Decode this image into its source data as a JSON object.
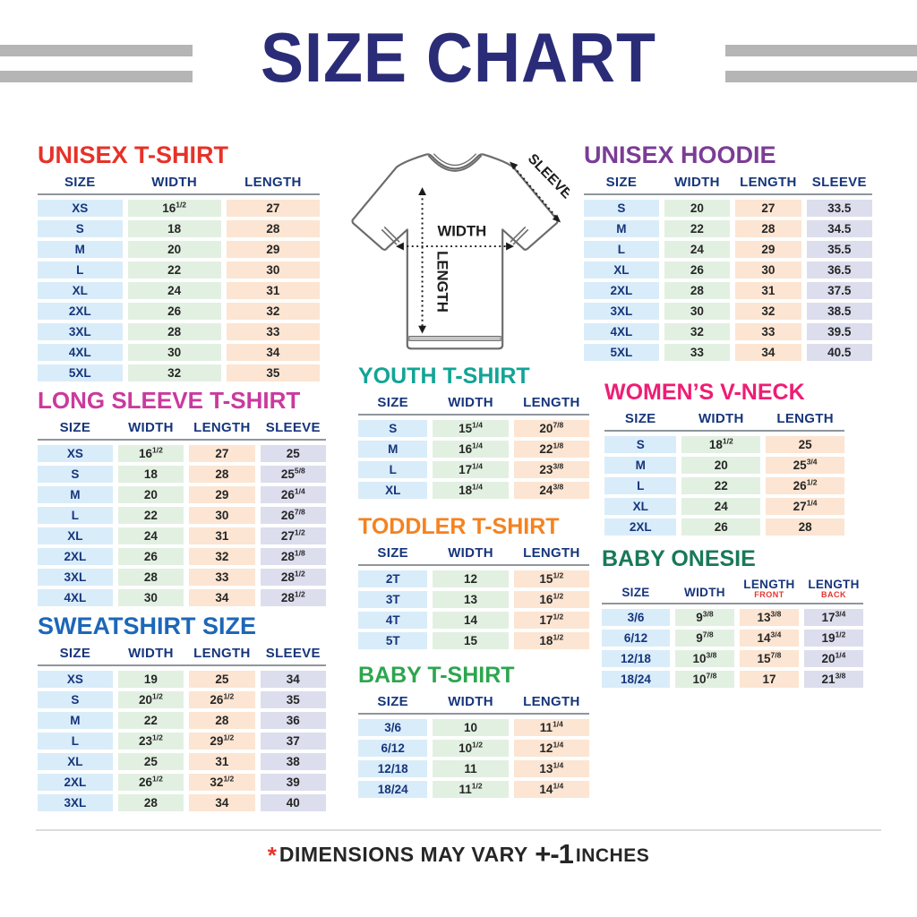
{
  "page": {
    "title": "SIZE CHART",
    "footer": {
      "asterisk": "*",
      "text": "DIMENSIONS MAY VARY",
      "tolerance": "+-1",
      "units": "INCHES"
    }
  },
  "colors": {
    "title_navy": "#2b2c77",
    "header_navy": "#16357c",
    "gray_bar": "#b5b5b5",
    "col_fills": [
      "#d9ecf9",
      "#e2f0e2",
      "#fce5d2",
      "#dcdded"
    ],
    "header_sub_red": "#e6342e"
  },
  "diagram": {
    "width_label": "WIDTH",
    "length_label": "LENGTH",
    "sleeve_label": "SLEEVE"
  },
  "tables": {
    "unisex_tshirt": {
      "title": "UNISEX T-SHIRT",
      "title_color": "#e63229",
      "headers": [
        "SIZE",
        "WIDTH",
        "LENGTH"
      ],
      "rows": [
        [
          "XS",
          "16 1/2",
          "27"
        ],
        [
          "S",
          "18",
          "28"
        ],
        [
          "M",
          "20",
          "29"
        ],
        [
          "L",
          "22",
          "30"
        ],
        [
          "XL",
          "24",
          "31"
        ],
        [
          "2XL",
          "26",
          "32"
        ],
        [
          "3XL",
          "28",
          "33"
        ],
        [
          "4XL",
          "30",
          "34"
        ],
        [
          "5XL",
          "32",
          "35"
        ]
      ]
    },
    "long_sleeve": {
      "title": "LONG SLEEVE T-SHIRT",
      "title_color": "#ca3a9e",
      "headers": [
        "SIZE",
        "WIDTH",
        "LENGTH",
        "SLEEVE"
      ],
      "rows": [
        [
          "XS",
          "16 1/2",
          "27",
          "25"
        ],
        [
          "S",
          "18",
          "28",
          "25 5/8"
        ],
        [
          "M",
          "20",
          "29",
          "26 1/4"
        ],
        [
          "L",
          "22",
          "30",
          "26 7/8"
        ],
        [
          "XL",
          "24",
          "31",
          "27 1/2"
        ],
        [
          "2XL",
          "26",
          "32",
          "28 1/8"
        ],
        [
          "3XL",
          "28",
          "33",
          "28 1/2"
        ],
        [
          "4XL",
          "30",
          "34",
          "28 1/2"
        ]
      ]
    },
    "sweatshirt": {
      "title": "SWEATSHIRT SIZE",
      "title_color": "#1c67b8",
      "headers": [
        "SIZE",
        "WIDTH",
        "LENGTH",
        "SLEEVE"
      ],
      "rows": [
        [
          "XS",
          "19",
          "25",
          "34"
        ],
        [
          "S",
          "20 1/2",
          "26 1/2",
          "35"
        ],
        [
          "M",
          "22",
          "28",
          "36"
        ],
        [
          "L",
          "23 1/2",
          "29 1/2",
          "37"
        ],
        [
          "XL",
          "25",
          "31",
          "38"
        ],
        [
          "2XL",
          "26 1/2",
          "32 1/2",
          "39"
        ],
        [
          "3XL",
          "28",
          "34",
          "40"
        ]
      ]
    },
    "unisex_hoodie": {
      "title": "UNISEX HOODIE",
      "title_color": "#7b3c96",
      "headers": [
        "SIZE",
        "WIDTH",
        "LENGTH",
        "SLEEVE"
      ],
      "rows": [
        [
          "S",
          "20",
          "27",
          "33.5"
        ],
        [
          "M",
          "22",
          "28",
          "34.5"
        ],
        [
          "L",
          "24",
          "29",
          "35.5"
        ],
        [
          "XL",
          "26",
          "30",
          "36.5"
        ],
        [
          "2XL",
          "28",
          "31",
          "37.5"
        ],
        [
          "3XL",
          "30",
          "32",
          "38.5"
        ],
        [
          "4XL",
          "32",
          "33",
          "39.5"
        ],
        [
          "5XL",
          "33",
          "34",
          "40.5"
        ]
      ]
    },
    "youth_tshirt": {
      "title": "YOUTH T-SHIRT",
      "title_color": "#12a496",
      "headers": [
        "SIZE",
        "WIDTH",
        "LENGTH"
      ],
      "rows": [
        [
          "S",
          "15 1/4",
          "20 7/8"
        ],
        [
          "M",
          "16 1/4",
          "22 1/8"
        ],
        [
          "L",
          "17 1/4",
          "23 3/8"
        ],
        [
          "XL",
          "18 1/4",
          "24 3/8"
        ]
      ]
    },
    "womens_vneck": {
      "title": "WOMEN’S V-NECK",
      "title_color": "#ee1d74",
      "headers": [
        "SIZE",
        "WIDTH",
        "LENGTH"
      ],
      "rows": [
        [
          "S",
          "18 1/2",
          "25"
        ],
        [
          "M",
          "20",
          "25 3/4"
        ],
        [
          "L",
          "22",
          "26 1/2"
        ],
        [
          "XL",
          "24",
          "27 1/4"
        ],
        [
          "2XL",
          "26",
          "28"
        ]
      ]
    },
    "toddler_tshirt": {
      "title": "TODDLER T-SHIRT",
      "title_color": "#f5821f",
      "headers": [
        "SIZE",
        "WIDTH",
        "LENGTH"
      ],
      "rows": [
        [
          "2T",
          "12",
          "15 1/2"
        ],
        [
          "3T",
          "13",
          "16 1/2"
        ],
        [
          "4T",
          "14",
          "17 1/2"
        ],
        [
          "5T",
          "15",
          "18 1/2"
        ]
      ]
    },
    "baby_onesie": {
      "title": "BABY ONESIE",
      "title_color": "#18795a",
      "headers": [
        {
          "label": "SIZE"
        },
        {
          "label": "WIDTH"
        },
        {
          "label": "LENGTH",
          "sub": "FRONT"
        },
        {
          "label": "LENGTH",
          "sub": "BACK"
        }
      ],
      "rows": [
        [
          "3/6",
          "9 3/8",
          "13 3/8",
          "17 3/4"
        ],
        [
          "6/12",
          "9 7/8",
          "14 3/4",
          "19 1/2"
        ],
        [
          "12/18",
          "10 3/8",
          "15 7/8",
          "20 1/4"
        ],
        [
          "18/24",
          "10 7/8",
          "17",
          "21 3/8"
        ]
      ]
    },
    "baby_tshirt": {
      "title": "BABY T-SHIRT",
      "title_color": "#2ca64e",
      "headers": [
        "SIZE",
        "WIDTH",
        "LENGTH"
      ],
      "rows": [
        [
          "3/6",
          "10",
          "11 1/4"
        ],
        [
          "6/12",
          "10 1/2",
          "12 1/4"
        ],
        [
          "12/18",
          "11",
          "13 1/4"
        ],
        [
          "18/24",
          "11 1/2",
          "14 1/4"
        ]
      ]
    }
  }
}
